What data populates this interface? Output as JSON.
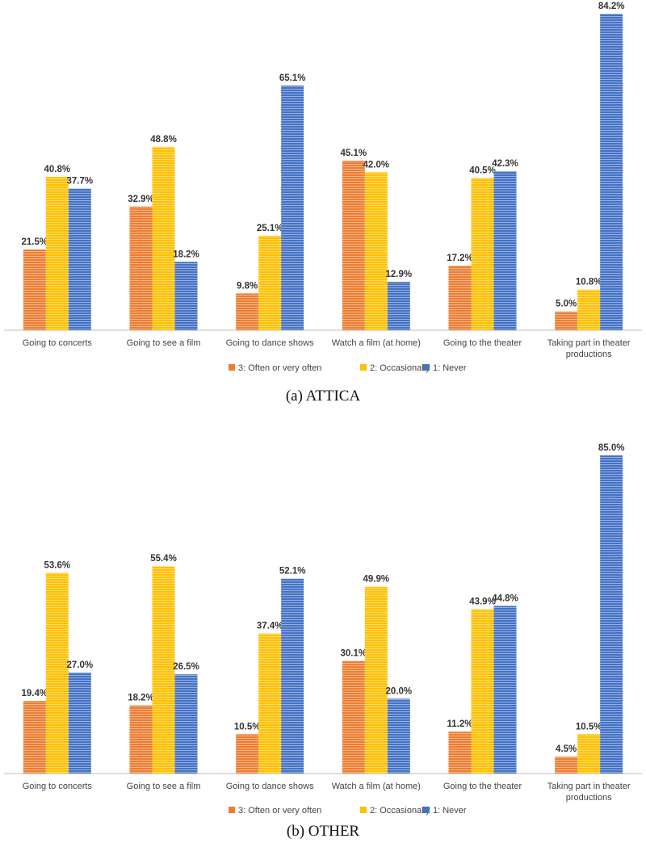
{
  "colors": {
    "often": "#ED7D31",
    "occasionally": "#FFC000",
    "never": "#4472C4",
    "axis": "#bfbfbf"
  },
  "chart_data": [
    {
      "type": "bar",
      "caption": "(a) ATTICA",
      "categories": [
        [
          "Going to concerts"
        ],
        [
          "Going to see a film"
        ],
        [
          "Going to dance shows"
        ],
        [
          "Watch a film (at home)"
        ],
        [
          "Going to the theater"
        ],
        [
          "Taking part in theater",
          "productions"
        ]
      ],
      "series": [
        {
          "name": "3: Often or very often",
          "color_key": "often",
          "values": [
            21.5,
            32.9,
            9.8,
            45.1,
            17.2,
            5.0
          ],
          "labels": [
            "21.5%",
            "32.9%",
            "9.8%",
            "45.1%",
            "17.2%",
            "5.0%"
          ]
        },
        {
          "name": "2: Occasionally",
          "color_key": "occasionally",
          "values": [
            40.8,
            48.8,
            25.1,
            42.0,
            40.5,
            10.8
          ],
          "labels": [
            "40.8%",
            "48.8%",
            "25.1%",
            "42.0%",
            "40.5%",
            "10.8%"
          ]
        },
        {
          "name": "1: Never",
          "color_key": "never",
          "values": [
            37.7,
            18.2,
            65.1,
            12.9,
            42.3,
            84.2
          ],
          "labels": [
            "37.7%",
            "18.2%",
            "65.1%",
            "12.9%",
            "42.3%",
            "84.2%"
          ]
        }
      ],
      "ylim": [
        0,
        84.2
      ],
      "legend": "bottom"
    },
    {
      "type": "bar",
      "caption": "(b) OTHER",
      "categories": [
        [
          "Going to concerts"
        ],
        [
          "Going to see a film"
        ],
        [
          "Going to dance shows"
        ],
        [
          "Watch a film (at home)"
        ],
        [
          "Going to the theater"
        ],
        [
          "Taking part in theater",
          "productions"
        ]
      ],
      "series": [
        {
          "name": "3: Often or very often",
          "color_key": "often",
          "values": [
            19.4,
            18.2,
            10.5,
            30.1,
            11.2,
            4.5
          ],
          "labels": [
            "19.4%",
            "18.2%",
            "10.5%",
            "30.1%",
            "11.2%",
            "4.5%"
          ]
        },
        {
          "name": "2: Occasionally",
          "color_key": "occasionally",
          "values": [
            53.6,
            55.4,
            37.4,
            49.9,
            43.9,
            10.5
          ],
          "labels": [
            "53.6%",
            "55.4%",
            "37.4%",
            "49.9%",
            "43.9%",
            "10.5%"
          ]
        },
        {
          "name": "1: Never",
          "color_key": "never",
          "values": [
            27.0,
            26.5,
            52.1,
            20.0,
            44.8,
            85.0
          ],
          "labels": [
            "27.0%",
            "26.5%",
            "52.1%",
            "20.0%",
            "44.8%",
            "85.0%"
          ]
        }
      ],
      "ylim": [
        0,
        85.0
      ],
      "legend": "bottom"
    }
  ]
}
